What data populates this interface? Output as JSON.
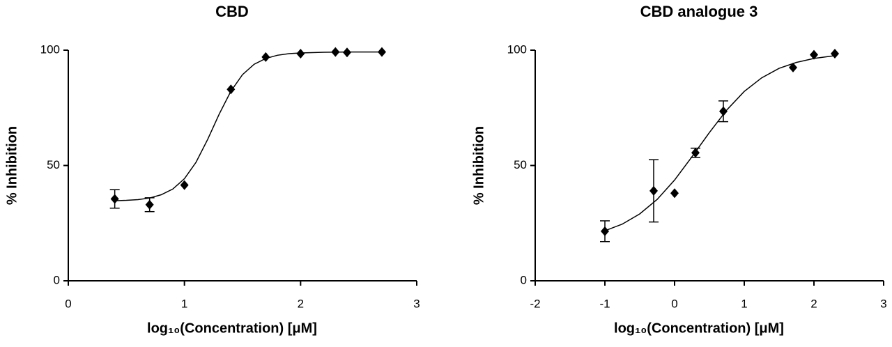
{
  "chart_data": [
    {
      "type": "scatter",
      "title": "CBD",
      "xlabel": "log₁₀(Concentration) [μM]",
      "ylabel": "% Inhibition",
      "x": [
        0.4,
        0.7,
        1.0,
        1.4,
        1.7,
        2.0,
        2.3,
        2.4,
        2.7
      ],
      "values": [
        35.5,
        33,
        41.5,
        83,
        97,
        98.5,
        99.2,
        99,
        99.2
      ],
      "errors": [
        4,
        3,
        null,
        null,
        null,
        null,
        null,
        null,
        null
      ],
      "fit": {
        "x": [
          0.4,
          0.5,
          0.6,
          0.7,
          0.8,
          0.9,
          1.0,
          1.1,
          1.2,
          1.3,
          1.4,
          1.5,
          1.6,
          1.7,
          1.8,
          1.9,
          2.0,
          2.2,
          2.4,
          2.7
        ],
        "values": [
          34.7,
          34.9,
          35.2,
          35.9,
          37.3,
          39.8,
          44.3,
          51.4,
          61.3,
          72.4,
          82.2,
          89.4,
          93.9,
          96.4,
          97.8,
          98.5,
          98.8,
          99.1,
          99.2,
          99.2
        ]
      },
      "color": "#000000",
      "xlim": [
        0,
        3
      ],
      "ylim": [
        0,
        100
      ],
      "xticks": [
        0,
        1,
        2,
        3
      ],
      "yticks": [
        0,
        50,
        100
      ]
    },
    {
      "type": "scatter",
      "title": "CBD analogue 3",
      "xlabel": "log₁₀(Concentration) [μM]",
      "ylabel": "% Inhibition",
      "x": [
        -1,
        -0.3,
        0,
        0.3,
        0.7,
        1.7,
        2.0,
        2.3
      ],
      "values": [
        21.5,
        39,
        38,
        55.5,
        73.5,
        92.5,
        98,
        98.5
      ],
      "errors": [
        4.5,
        13.5,
        null,
        2,
        4.5,
        null,
        null,
        null
      ],
      "fit": {
        "x": [
          -1,
          -0.75,
          -0.5,
          -0.25,
          0,
          0.25,
          0.5,
          0.75,
          1.0,
          1.25,
          1.5,
          1.75,
          2.0,
          2.3
        ],
        "values": [
          21.7,
          24.6,
          29.0,
          35.3,
          43.7,
          53.8,
          64.3,
          74.1,
          82.1,
          88.0,
          92.1,
          94.7,
          96.4,
          97.6
        ]
      },
      "color": "#000000",
      "xlim": [
        -2,
        3
      ],
      "ylim": [
        0,
        100
      ],
      "xticks": [
        -2,
        -1,
        0,
        1,
        2,
        3
      ],
      "yticks": [
        0,
        50,
        100
      ]
    }
  ]
}
